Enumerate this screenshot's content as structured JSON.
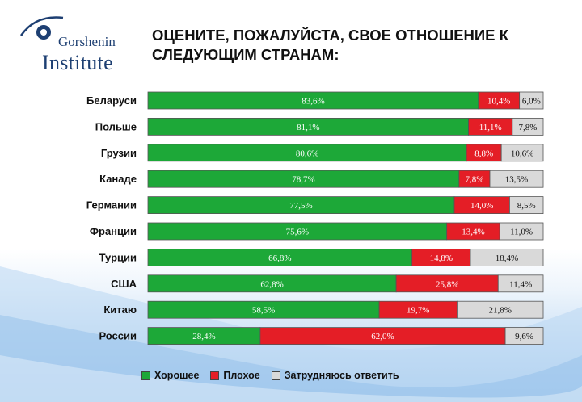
{
  "logo": {
    "line1": "Gorshenin",
    "line2": "Institute"
  },
  "colors": {
    "good": "#1da838",
    "bad": "#e41e26",
    "unsure": "#d9d9d9",
    "brand": "#1d3f72"
  },
  "chart_data": {
    "type": "bar",
    "orientation": "horizontal",
    "stacked": true,
    "title": "ОЦЕНИТЕ, ПОЖАЛУЙСТА, СВОЕ ОТНОШЕНИЕ К СЛЕДУЮЩИМ СТРАНАМ:",
    "categories": [
      "Беларуси",
      "Польше",
      "Грузии",
      "Канаде",
      "Германии",
      "Франции",
      "Турции",
      "США",
      "Китаю",
      "России"
    ],
    "series": [
      {
        "name": "Хорошее",
        "color": "#1da838",
        "values": [
          83.6,
          81.1,
          80.6,
          78.7,
          77.5,
          75.6,
          66.8,
          62.8,
          58.5,
          28.4
        ],
        "labels": [
          "83,6%",
          "81,1%",
          "80,6%",
          "78,7%",
          "77,5%",
          "75,6%",
          "66,8%",
          "62,8%",
          "58,5%",
          "28,4%"
        ]
      },
      {
        "name": "Плохое",
        "color": "#e41e26",
        "values": [
          10.4,
          11.1,
          8.8,
          7.8,
          14.0,
          13.4,
          14.8,
          25.8,
          19.7,
          62.0
        ],
        "labels": [
          "10,4%",
          "11,1%",
          "8,8%",
          "7,8%",
          "14,0%",
          "13,4%",
          "14,8%",
          "25,8%",
          "19,7%",
          "62,0%"
        ]
      },
      {
        "name": "Затрудняюсь ответить",
        "color": "#d9d9d9",
        "values": [
          6.0,
          7.8,
          10.6,
          13.5,
          8.5,
          11.0,
          18.4,
          11.4,
          21.8,
          9.6
        ],
        "labels": [
          "6,0%",
          "7,8%",
          "10,6%",
          "13,5%",
          "8,5%",
          "11,0%",
          "18,4%",
          "11,4%",
          "21,8%",
          "9,6%"
        ]
      }
    ],
    "xlim": [
      0,
      100
    ],
    "legend_position": "bottom"
  }
}
